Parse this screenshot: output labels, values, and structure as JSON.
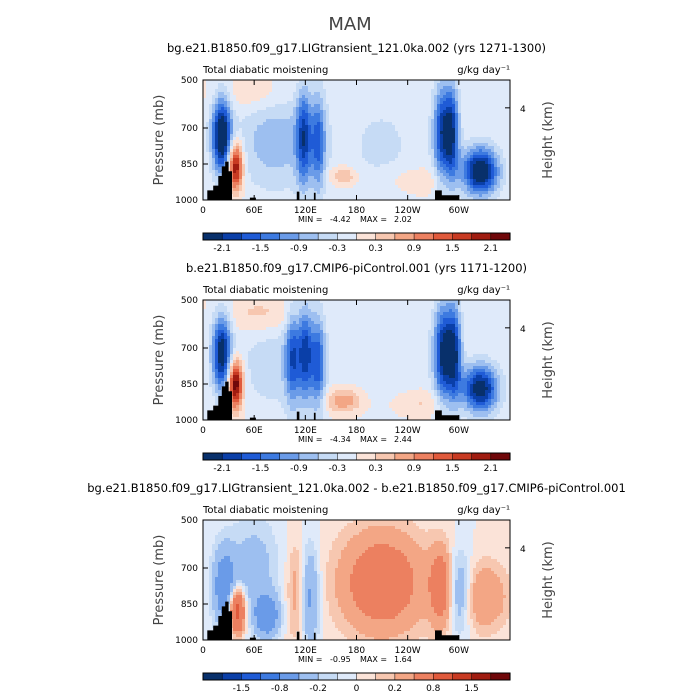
{
  "figure": {
    "season_title": "MAM"
  },
  "colors": {
    "palette_neg": [
      "#08306b",
      "#0a3fa8",
      "#1f5bd6",
      "#3d7ae0",
      "#6a9be8",
      "#9dbff0",
      "#c6dbf5",
      "#dfeafa"
    ],
    "palette_pos": [
      "#fbe3d8",
      "#f7c7b0",
      "#f3a685",
      "#ec8060",
      "#e05a3c",
      "#c83a22",
      "#a01c10",
      "#70080a"
    ],
    "topography": "#000000"
  },
  "chart_data": [
    {
      "type": "heatmap",
      "title": "bg.e21.B1850.f09_g17.LIGtransient_121.0ka.002 (yrs 1271-1300)",
      "left_label": "Total diabatic moistening",
      "units_label": "g/kg day⁻¹",
      "ylabel": "Pressure (mb)",
      "y2label": "Height (km)",
      "y_ticks": [
        "500",
        "700",
        "850",
        "1000"
      ],
      "y_tick_values": [
        500,
        700,
        850,
        1000
      ],
      "y2_ticks": [
        "4"
      ],
      "x_ticks": [
        "0",
        "60E",
        "120E",
        "180",
        "120W",
        "60W"
      ],
      "x_tick_values": [
        0,
        60,
        120,
        180,
        240,
        300
      ],
      "xlim": [
        0,
        360
      ],
      "ylim": [
        1000,
        500
      ],
      "stats": {
        "min_label": "MIN =",
        "min": "-4.42",
        "max_label": "MAX =",
        "max": "2.02"
      },
      "colorbar_labels": [
        "-2.1",
        "-1.5",
        "-0.9",
        "-0.3",
        "0.3",
        "0.9",
        "1.5",
        "2.1"
      ],
      "levels": [
        -2.4,
        -2.1,
        -1.8,
        -1.5,
        -1.2,
        -0.9,
        -0.6,
        -0.3,
        0,
        0.3,
        0.6,
        0.9,
        1.2,
        1.5,
        1.8,
        2.1,
        2.4
      ],
      "blobs": [
        {
          "lon": 22,
          "p": 730,
          "slon": 8,
          "sp": 110,
          "amp": -2.6
        },
        {
          "lon": 38,
          "p": 860,
          "slon": 6,
          "sp": 70,
          "amp": 2.4
        },
        {
          "lon": 85,
          "p": 750,
          "slon": 35,
          "sp": 150,
          "amp": -0.8
        },
        {
          "lon": 118,
          "p": 740,
          "slon": 6,
          "sp": 140,
          "amp": -1.6
        },
        {
          "lon": 135,
          "p": 760,
          "slon": 6,
          "sp": 140,
          "amp": -1.4
        },
        {
          "lon": 210,
          "p": 780,
          "slon": 40,
          "sp": 200,
          "amp": -0.35
        },
        {
          "lon": 165,
          "p": 900,
          "slon": 12,
          "sp": 30,
          "amp": 0.7
        },
        {
          "lon": 280,
          "p": 720,
          "slon": 7,
          "sp": 140,
          "amp": -1.8
        },
        {
          "lon": 292,
          "p": 720,
          "slon": 6,
          "sp": 140,
          "amp": -1.9
        },
        {
          "lon": 325,
          "p": 880,
          "slon": 15,
          "sp": 70,
          "amp": -2.6
        },
        {
          "lon": 250,
          "p": 920,
          "slon": 25,
          "sp": 40,
          "amp": 0.4
        },
        {
          "lon": 60,
          "p": 560,
          "slon": 30,
          "sp": 60,
          "amp": 0.4
        }
      ],
      "topography": [
        [
          5,
          1000
        ],
        [
          5,
          960
        ],
        [
          12,
          960
        ],
        [
          12,
          940
        ],
        [
          18,
          940
        ],
        [
          18,
          900
        ],
        [
          22,
          900
        ],
        [
          22,
          860
        ],
        [
          26,
          860
        ],
        [
          26,
          840
        ],
        [
          30,
          840
        ],
        [
          30,
          880
        ],
        [
          34,
          880
        ],
        [
          34,
          1000
        ],
        [
          55,
          1000
        ],
        [
          55,
          990
        ],
        [
          62,
          990
        ],
        [
          62,
          1000
        ],
        [
          110,
          1000
        ],
        [
          110,
          965
        ],
        [
          113,
          965
        ],
        [
          113,
          1000
        ],
        [
          130,
          1000
        ],
        [
          130,
          970
        ],
        [
          132,
          970
        ],
        [
          132,
          1000
        ],
        [
          272,
          1000
        ],
        [
          272,
          960
        ],
        [
          280,
          960
        ],
        [
          280,
          980
        ],
        [
          300,
          980
        ],
        [
          300,
          1000
        ]
      ]
    },
    {
      "type": "heatmap",
      "title": "b.e21.B1850.f09_g17.CMIP6-piControl.001 (yrs 1171-1200)",
      "left_label": "Total diabatic moistening",
      "units_label": "g/kg day⁻¹",
      "ylabel": "Pressure (mb)",
      "y2label": "Height (km)",
      "y_ticks": [
        "500",
        "700",
        "850",
        "1000"
      ],
      "y_tick_values": [
        500,
        700,
        850,
        1000
      ],
      "y2_ticks": [
        "4"
      ],
      "x_ticks": [
        "0",
        "60E",
        "120E",
        "180",
        "120W",
        "60W"
      ],
      "x_tick_values": [
        0,
        60,
        120,
        180,
        240,
        300
      ],
      "xlim": [
        0,
        360
      ],
      "ylim": [
        1000,
        500
      ],
      "stats": {
        "min_label": "MIN =",
        "min": "-4.34",
        "max_label": "MAX =",
        "max": "2.44"
      },
      "colorbar_labels": [
        "-2.1",
        "-1.5",
        "-0.9",
        "-0.3",
        "0.3",
        "0.9",
        "1.5",
        "2.1"
      ],
      "levels": [
        -2.4,
        -2.1,
        -1.8,
        -1.5,
        -1.2,
        -0.9,
        -0.6,
        -0.3,
        0,
        0.3,
        0.6,
        0.9,
        1.2,
        1.5,
        1.8,
        2.1,
        2.4
      ],
      "blobs": [
        {
          "lon": 22,
          "p": 720,
          "slon": 8,
          "sp": 110,
          "amp": -2.3
        },
        {
          "lon": 38,
          "p": 850,
          "slon": 6,
          "sp": 70,
          "amp": 2.6
        },
        {
          "lon": 85,
          "p": 760,
          "slon": 35,
          "sp": 150,
          "amp": -0.5
        },
        {
          "lon": 105,
          "p": 740,
          "slon": 6,
          "sp": 140,
          "amp": -1.4
        },
        {
          "lon": 120,
          "p": 720,
          "slon": 6,
          "sp": 140,
          "amp": -1.7
        },
        {
          "lon": 135,
          "p": 760,
          "slon": 6,
          "sp": 140,
          "amp": -1.5
        },
        {
          "lon": 165,
          "p": 920,
          "slon": 15,
          "sp": 35,
          "amp": 0.9
        },
        {
          "lon": 220,
          "p": 760,
          "slon": 40,
          "sp": 200,
          "amp": -0.2
        },
        {
          "lon": 282,
          "p": 720,
          "slon": 8,
          "sp": 140,
          "amp": -2.2
        },
        {
          "lon": 295,
          "p": 720,
          "slon": 6,
          "sp": 140,
          "amp": -1.8
        },
        {
          "lon": 325,
          "p": 870,
          "slon": 15,
          "sp": 70,
          "amp": -2.4
        },
        {
          "lon": 255,
          "p": 930,
          "slon": 25,
          "sp": 40,
          "amp": 0.4
        },
        {
          "lon": 70,
          "p": 560,
          "slon": 30,
          "sp": 60,
          "amp": 0.5
        }
      ],
      "topography": [
        [
          5,
          1000
        ],
        [
          5,
          960
        ],
        [
          12,
          960
        ],
        [
          12,
          940
        ],
        [
          18,
          940
        ],
        [
          18,
          900
        ],
        [
          22,
          900
        ],
        [
          22,
          860
        ],
        [
          26,
          860
        ],
        [
          26,
          840
        ],
        [
          30,
          840
        ],
        [
          30,
          880
        ],
        [
          34,
          880
        ],
        [
          34,
          1000
        ],
        [
          55,
          1000
        ],
        [
          55,
          990
        ],
        [
          62,
          990
        ],
        [
          62,
          1000
        ],
        [
          110,
          1000
        ],
        [
          110,
          965
        ],
        [
          113,
          965
        ],
        [
          113,
          1000
        ],
        [
          130,
          1000
        ],
        [
          130,
          970
        ],
        [
          132,
          970
        ],
        [
          132,
          1000
        ],
        [
          272,
          1000
        ],
        [
          272,
          960
        ],
        [
          280,
          960
        ],
        [
          280,
          980
        ],
        [
          300,
          980
        ],
        [
          300,
          1000
        ]
      ]
    },
    {
      "type": "heatmap",
      "title": "bg.e21.B1850.f09_g17.LIGtransient_121.0ka.002 - b.e21.B1850.f09_g17.CMIP6-piControl.001",
      "left_label": "Total diabatic moistening",
      "units_label": "g/kg day⁻¹",
      "ylabel": "Pressure (mb)",
      "y2label": "Height (km)",
      "y_ticks": [
        "500",
        "700",
        "850",
        "1000"
      ],
      "y_tick_values": [
        500,
        700,
        850,
        1000
      ],
      "y2_ticks": [
        "4"
      ],
      "x_ticks": [
        "0",
        "60E",
        "120E",
        "180",
        "120W",
        "60W"
      ],
      "x_tick_values": [
        0,
        60,
        120,
        180,
        240,
        300
      ],
      "xlim": [
        0,
        360
      ],
      "ylim": [
        1000,
        500
      ],
      "stats": {
        "min_label": "MIN =",
        "min": "-0.95",
        "max_label": "MAX =",
        "max": "1.64"
      },
      "colorbar_labels": [
        "-1.5",
        "-0.8",
        "-0.2",
        "0",
        "0.2",
        "0.8",
        "1.5"
      ],
      "levels": [
        -2.2,
        -1.5,
        -1.1,
        -0.8,
        -0.5,
        -0.2,
        -0.1,
        -0.05,
        0,
        0.05,
        0.1,
        0.2,
        0.5,
        0.8,
        1.1,
        1.5,
        2.2
      ],
      "blobs": [
        {
          "lon": 40,
          "p": 880,
          "slon": 6,
          "sp": 60,
          "amp": 0.7
        },
        {
          "lon": 25,
          "p": 780,
          "slon": 10,
          "sp": 120,
          "amp": -0.3
        },
        {
          "lon": 60,
          "p": 700,
          "slon": 20,
          "sp": 150,
          "amp": -0.15
        },
        {
          "lon": 110,
          "p": 800,
          "slon": 8,
          "sp": 150,
          "amp": 0.15
        },
        {
          "lon": 125,
          "p": 820,
          "slon": 8,
          "sp": 150,
          "amp": -0.25
        },
        {
          "lon": 210,
          "p": 760,
          "slon": 35,
          "sp": 150,
          "amp": 0.35
        },
        {
          "lon": 280,
          "p": 780,
          "slon": 10,
          "sp": 120,
          "amp": 0.3
        },
        {
          "lon": 300,
          "p": 800,
          "slon": 10,
          "sp": 120,
          "amp": -0.25
        },
        {
          "lon": 330,
          "p": 820,
          "slon": 20,
          "sp": 100,
          "amp": 0.2
        },
        {
          "lon": 75,
          "p": 900,
          "slon": 10,
          "sp": 60,
          "amp": -0.35
        }
      ],
      "topography": [
        [
          5,
          1000
        ],
        [
          5,
          960
        ],
        [
          12,
          960
        ],
        [
          12,
          940
        ],
        [
          18,
          940
        ],
        [
          18,
          900
        ],
        [
          22,
          900
        ],
        [
          22,
          860
        ],
        [
          26,
          860
        ],
        [
          26,
          840
        ],
        [
          30,
          840
        ],
        [
          30,
          880
        ],
        [
          34,
          880
        ],
        [
          34,
          1000
        ],
        [
          55,
          1000
        ],
        [
          55,
          990
        ],
        [
          62,
          990
        ],
        [
          62,
          1000
        ],
        [
          110,
          1000
        ],
        [
          110,
          965
        ],
        [
          113,
          965
        ],
        [
          113,
          1000
        ],
        [
          130,
          1000
        ],
        [
          130,
          970
        ],
        [
          132,
          970
        ],
        [
          132,
          1000
        ],
        [
          272,
          1000
        ],
        [
          272,
          960
        ],
        [
          280,
          960
        ],
        [
          280,
          980
        ],
        [
          300,
          980
        ],
        [
          300,
          1000
        ]
      ]
    }
  ]
}
